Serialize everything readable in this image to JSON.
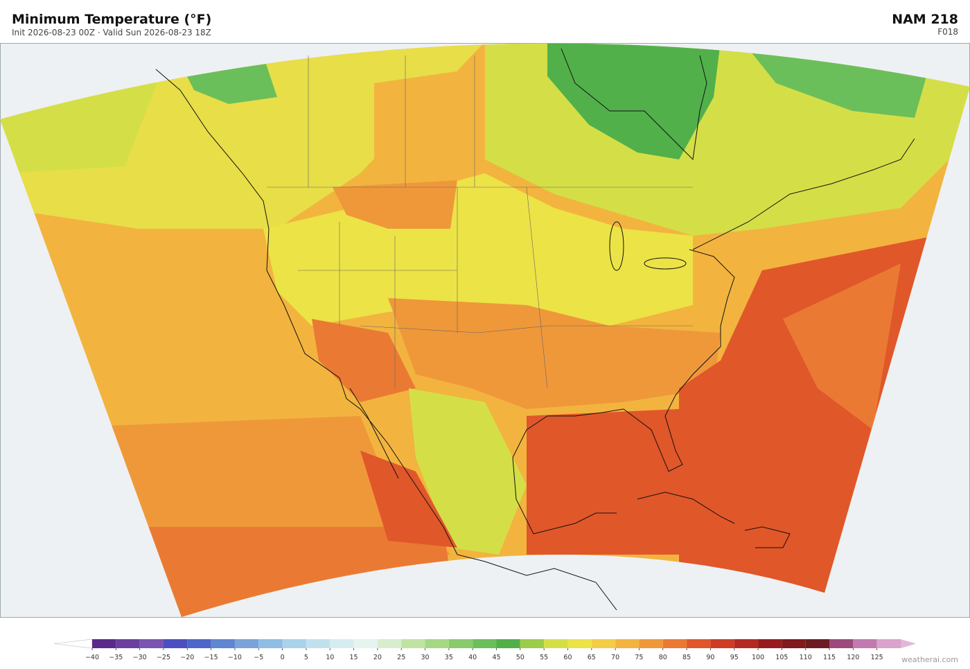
{
  "header": {
    "title": "Minimum Temperature  (°F)",
    "subtitle": "Init 2026-08-23 00Z  ·  Valid Sun 2026-08-23 18Z",
    "model": "NAM  218",
    "forecast_hour": "F018"
  },
  "colorbar": {
    "range": [
      -40,
      130
    ],
    "ticks": [
      {
        "value": -40,
        "label": "−40"
      },
      {
        "value": -35,
        "label": "−35"
      },
      {
        "value": -30,
        "label": "−30"
      },
      {
        "value": -25,
        "label": "−25"
      },
      {
        "value": -20,
        "label": "−20"
      },
      {
        "value": -15,
        "label": "−15"
      },
      {
        "value": -10,
        "label": "−10"
      },
      {
        "value": -5,
        "label": "−5"
      },
      0,
      5,
      10,
      15,
      20,
      25,
      30,
      35,
      40,
      45,
      50,
      55,
      60,
      65,
      70,
      75,
      80,
      85,
      90,
      95,
      100,
      105,
      110,
      115,
      120,
      125
    ],
    "colors": [
      "#5a2a8a",
      "#6b3fa0",
      "#7a55b0",
      "#4b4fbf",
      "#4f66c9",
      "#5f86d0",
      "#7aa3da",
      "#8fbde3",
      "#a9d3ea",
      "#c2e1ee",
      "#d6ecf1",
      "#e6f3ee",
      "#d8edcf",
      "#c0e3a2",
      "#a5d884",
      "#88cb6c",
      "#6bbf5a",
      "#52b04a",
      "#9ccc4a",
      "#d4df48",
      "#ece347",
      "#f3cd48",
      "#f2b43f",
      "#ef983a",
      "#ea7a33",
      "#e0572a",
      "#cc3d24",
      "#b32a22",
      "#981c1e",
      "#7f1a1d",
      "#6d1b22",
      "#9c4a7c",
      "#c27bb0",
      "#d9a3cc"
    ],
    "under_color": "#ffffff",
    "over_color": "#e3b6d8"
  },
  "watermark": "weatherai.com"
}
